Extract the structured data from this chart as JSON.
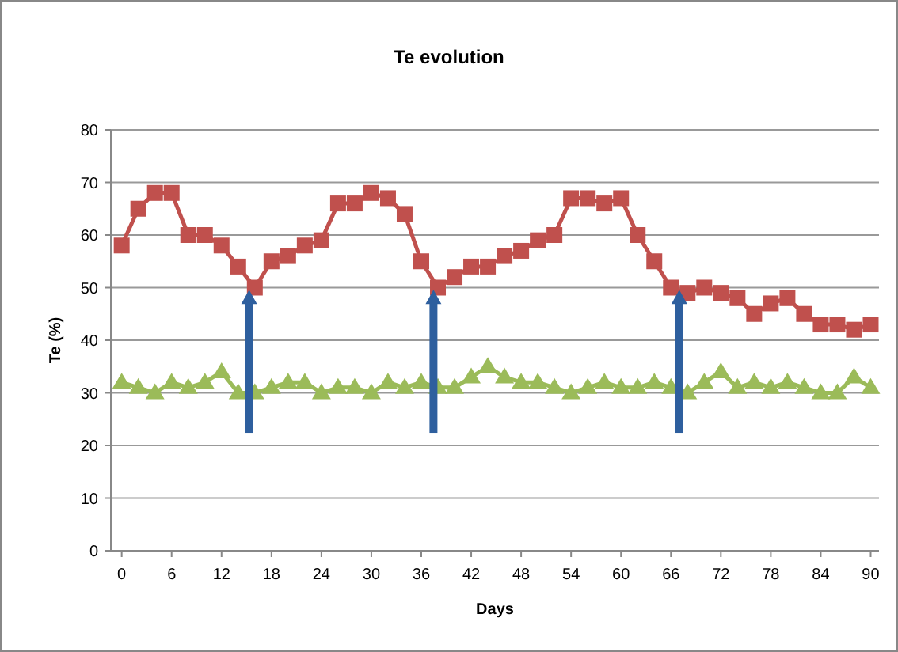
{
  "chart_data": {
    "type": "line",
    "title": "Te evolution",
    "xlabel": "Days",
    "ylabel": "Te (%)",
    "x": [
      0,
      2,
      4,
      6,
      8,
      10,
      12,
      14,
      16,
      18,
      20,
      22,
      24,
      26,
      28,
      30,
      32,
      34,
      36,
      38,
      40,
      42,
      44,
      46,
      48,
      50,
      52,
      54,
      56,
      58,
      60,
      62,
      64,
      66,
      68,
      70,
      72,
      74,
      76,
      78,
      80,
      82,
      84,
      86,
      88,
      90
    ],
    "series": [
      {
        "color": "#c0504d",
        "marker": "square",
        "values": [
          58,
          65,
          68,
          68,
          60,
          60,
          58,
          54,
          50,
          55,
          56,
          58,
          59,
          66,
          66,
          68,
          67,
          64,
          55,
          50,
          52,
          54,
          54,
          56,
          57,
          59,
          60,
          67,
          67,
          66,
          67,
          60,
          55,
          50,
          49,
          50,
          49,
          48,
          45,
          47,
          48,
          45,
          43,
          43,
          42,
          43
        ]
      },
      {
        "color": "#9bbb59",
        "marker": "triangle",
        "values": [
          32,
          31,
          30,
          32,
          31,
          32,
          34,
          30,
          30,
          31,
          32,
          32,
          30,
          31,
          31,
          30,
          32,
          31,
          32,
          31,
          31,
          33,
          35,
          33,
          32,
          32,
          31,
          30,
          31,
          32,
          31,
          31,
          32,
          31,
          30,
          32,
          34,
          31,
          32,
          31,
          32,
          31,
          30,
          30,
          33,
          31
        ]
      }
    ],
    "xlim": [
      -1.3,
      91
    ],
    "xticks": [
      0,
      6,
      12,
      18,
      24,
      30,
      36,
      42,
      48,
      54,
      60,
      66,
      72,
      78,
      84,
      90
    ],
    "ylim": [
      0,
      80
    ],
    "yticks": [
      0,
      10,
      20,
      30,
      40,
      50,
      60,
      70,
      80
    ],
    "grid": "y"
  }
}
